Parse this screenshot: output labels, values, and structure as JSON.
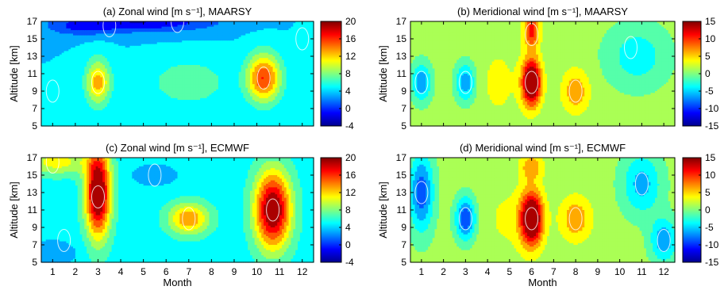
{
  "figure": {
    "xlabel": "Month",
    "ylabel": "Altitude [km]",
    "x_ticks": [
      "1",
      "2",
      "3",
      "4",
      "5",
      "6",
      "7",
      "8",
      "9",
      "10",
      "11",
      "12"
    ],
    "y_ticks": [
      "5",
      "7",
      "9",
      "11",
      "13",
      "15",
      "17"
    ]
  },
  "chart_data": [
    {
      "type": "heatmap",
      "id": "a",
      "title": "(a) Zonal wind [m s⁻¹], MAARSY",
      "xlabel": "",
      "ylabel": "Altitude [km]",
      "xlim": [
        0.5,
        12.5
      ],
      "ylim": [
        5,
        17
      ],
      "colorbar": {
        "ticks": [
          "20",
          "16",
          "12",
          "8",
          "4",
          "0",
          "-4"
        ],
        "range": [
          -4,
          20
        ]
      },
      "features": [
        {
          "x": 3.0,
          "y": 10.0,
          "value": 13
        },
        {
          "x": 10.3,
          "y": 10.5,
          "value": 16
        },
        {
          "x": 3.5,
          "y": 16.5,
          "value": -3
        },
        {
          "x": 6.5,
          "y": 17.0,
          "value": -3
        },
        {
          "x": 12.0,
          "y": 15.0,
          "value": 5
        },
        {
          "x": 1.0,
          "y": 9.0,
          "value": 5
        }
      ]
    },
    {
      "type": "heatmap",
      "id": "b",
      "title": "(b) Meridional wind [m s⁻¹], MAARSY",
      "xlabel": "",
      "ylabel": "Altitude [km]",
      "xlim": [
        0.5,
        12.5
      ],
      "ylim": [
        5,
        17
      ],
      "colorbar": {
        "ticks": [
          "15",
          "10",
          "5",
          "0",
          "-5",
          "-10",
          "-15"
        ],
        "range": [
          -15,
          15
        ]
      },
      "features": [
        {
          "x": 6.0,
          "y": 10.0,
          "value": 15
        },
        {
          "x": 6.0,
          "y": 15.5,
          "value": 10
        },
        {
          "x": 8.0,
          "y": 9.0,
          "value": 7
        },
        {
          "x": 1.0,
          "y": 10.0,
          "value": -8
        },
        {
          "x": 3.0,
          "y": 10.0,
          "value": -8
        },
        {
          "x": 10.5,
          "y": 14.0,
          "value": -3
        }
      ]
    },
    {
      "type": "heatmap",
      "id": "c",
      "title": "(c) Zonal wind [m s⁻¹], ECMWF",
      "xlabel": "Month",
      "ylabel": "Altitude [km]",
      "xlim": [
        0.5,
        12.5
      ],
      "ylim": [
        5,
        17
      ],
      "colorbar": {
        "ticks": [
          "20",
          "16",
          "12",
          "8",
          "4",
          "0",
          "-4"
        ],
        "range": [
          -4,
          20
        ]
      },
      "features": [
        {
          "x": 3.0,
          "y": 12.5,
          "value": 22
        },
        {
          "x": 10.7,
          "y": 11.0,
          "value": 22
        },
        {
          "x": 7.0,
          "y": 10.0,
          "value": 15
        },
        {
          "x": 1.0,
          "y": 16.5,
          "value": 12
        },
        {
          "x": 5.5,
          "y": 15.0,
          "value": 5
        },
        {
          "x": 1.5,
          "y": 7.5,
          "value": 4
        }
      ]
    },
    {
      "type": "heatmap",
      "id": "d",
      "title": "(d) Meridional wind [m s⁻¹], ECMWF",
      "xlabel": "Month",
      "ylabel": "Altitude [km]",
      "xlim": [
        0.5,
        12.5
      ],
      "ylim": [
        5,
        17
      ],
      "colorbar": {
        "ticks": [
          "15",
          "10",
          "5",
          "0",
          "-5",
          "-10",
          "-15"
        ],
        "range": [
          -15,
          15
        ]
      },
      "features": [
        {
          "x": 6.0,
          "y": 10.0,
          "value": 16
        },
        {
          "x": 8.0,
          "y": 10.0,
          "value": 7
        },
        {
          "x": 1.0,
          "y": 13.0,
          "value": -10
        },
        {
          "x": 3.0,
          "y": 10.0,
          "value": -11
        },
        {
          "x": 11.0,
          "y": 14.0,
          "value": -6
        },
        {
          "x": 12.0,
          "y": 7.5,
          "value": -7
        }
      ]
    }
  ]
}
